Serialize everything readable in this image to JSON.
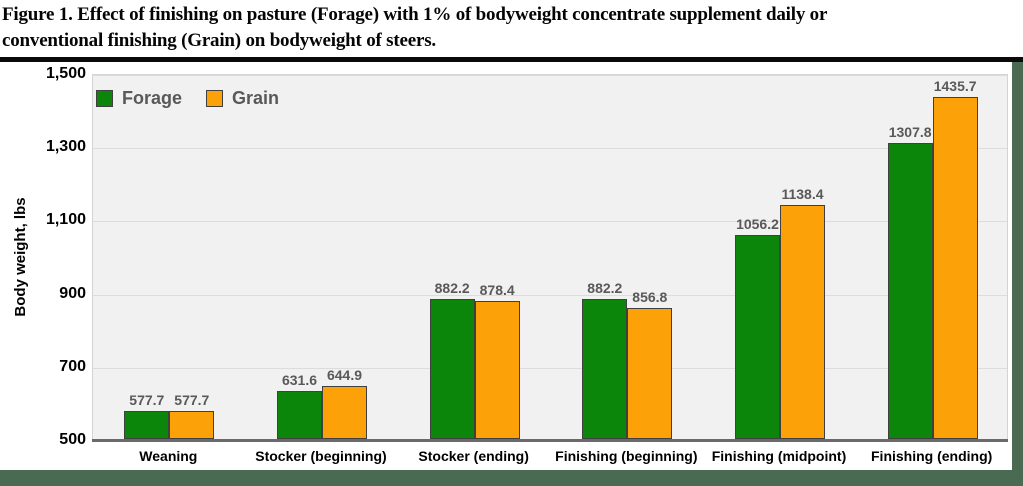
{
  "figure": {
    "title_line1": "Figure 1. Effect of finishing on pasture (Forage) with 1% of bodyweight concentrate supplement daily or",
    "title_line2": "conventional finishing (Grain) on bodyweight of steers."
  },
  "colors": {
    "forage": "#0b860b",
    "grain": "#fda109",
    "bar_border": "#404040",
    "plot_bg": "#f1f1f1",
    "gridline": "#dcdcdc",
    "axis_line": "#6a6a6a",
    "data_label": "#595959",
    "title_rule": "#0a0a0a",
    "accent_band": "#4a6b51"
  },
  "chart_data": {
    "type": "bar",
    "title": "",
    "xlabel": "",
    "ylabel": "Body weight, lbs",
    "categories": [
      "Weaning",
      "Stocker (beginning)",
      "Stocker (ending)",
      "Finishing (beginning)",
      "Finishing (midpoint)",
      "Finishing (ending)"
    ],
    "series": [
      {
        "name": "Forage",
        "color_key": "forage",
        "values": [
          577.7,
          631.6,
          882.2,
          882.2,
          1056.2,
          1307.8
        ]
      },
      {
        "name": "Grain",
        "color_key": "grain",
        "values": [
          577.7,
          644.9,
          878.4,
          856.8,
          1138.4,
          1435.7
        ]
      }
    ],
    "ylim": [
      500,
      1500
    ],
    "ytick_step": 200,
    "ytick_labels": [
      "500",
      "700",
      "900",
      "1,100",
      "1,300",
      "1,500"
    ],
    "grid": true,
    "legend_position": "top-left-inside"
  }
}
